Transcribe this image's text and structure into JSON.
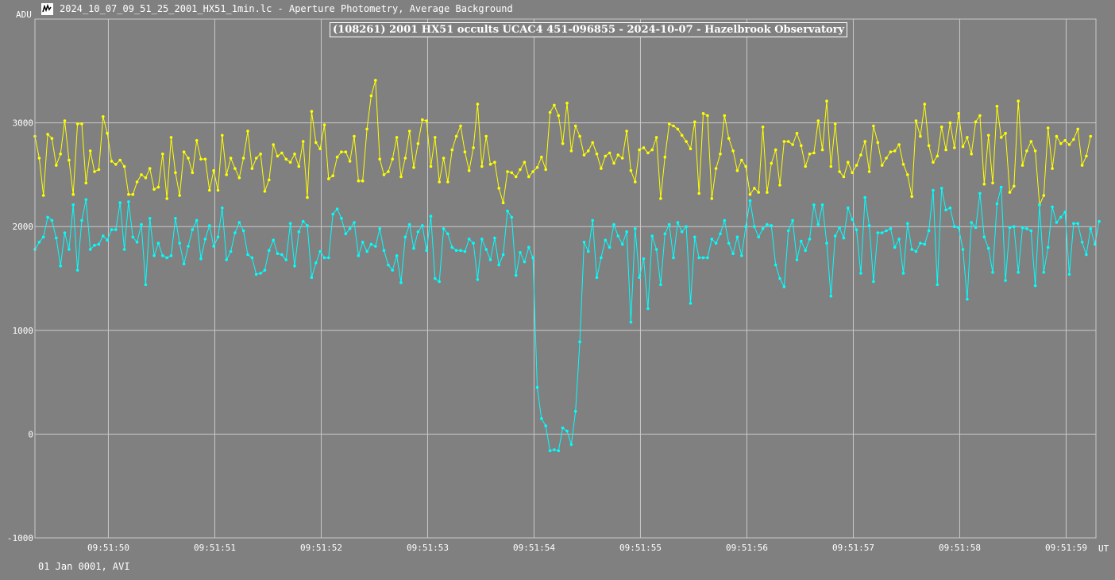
{
  "window": {
    "title": "2024_10_07_09_51_25_2001_HX51_1min.lc - Aperture Photometry, Average Background",
    "icon": "lightcurve-app-icon"
  },
  "footer": {
    "info": "01 Jan 0001, AVI"
  },
  "chart_data": {
    "type": "line",
    "title": "(108261) 2001 HX51 occults UCAC4 451-096855 - 2024-10-07 - Hazelbrook Observatory",
    "ylabel": "ADU",
    "xlabel": "UT",
    "xlim": [
      49.31,
      59.28
    ],
    "ylim": [
      -1000,
      4000
    ],
    "grid": true,
    "yticks": [
      -1000,
      0,
      1000,
      2000,
      3000
    ],
    "ytick_labels": [
      "-1000",
      "0",
      "1000",
      "2000",
      "3000"
    ],
    "xticks": [
      50,
      51,
      52,
      53,
      54,
      55,
      56,
      57,
      58,
      59
    ],
    "xtick_labels": [
      "09:51:50",
      "09:51:51",
      "09:51:52",
      "09:51:53",
      "09:51:54",
      "09:51:55",
      "09:51:56",
      "09:51:57",
      "09:51:58",
      "09:51:59"
    ],
    "x": {
      "start": 49.31,
      "step": 0.04
    },
    "series": [
      {
        "color": "#ffff00",
        "values": [
          2870,
          2660,
          2300,
          2890,
          2850,
          2590,
          2700,
          3020,
          2640,
          2310,
          2990,
          2990,
          2420,
          2730,
          2530,
          2550,
          3060,
          2900,
          2630,
          2600,
          2640,
          2580,
          2310,
          2310,
          2430,
          2500,
          2470,
          2560,
          2360,
          2380,
          2700,
          2270,
          2860,
          2520,
          2300,
          2720,
          2660,
          2520,
          2830,
          2650,
          2650,
          2350,
          2540,
          2350,
          2880,
          2500,
          2660,
          2560,
          2470,
          2660,
          2920,
          2560,
          2660,
          2700,
          2340,
          2450,
          2790,
          2680,
          2710,
          2650,
          2620,
          2700,
          2580,
          2820,
          2280,
          3110,
          2810,
          2750,
          2980,
          2460,
          2490,
          2670,
          2720,
          2720,
          2630,
          2870,
          2440,
          2440,
          2940,
          3260,
          3410,
          2650,
          2500,
          2530,
          2650,
          2860,
          2480,
          2660,
          2920,
          2570,
          2800,
          3030,
          3020,
          2580,
          2860,
          2430,
          2660,
          2430,
          2740,
          2870,
          2970,
          2720,
          2540,
          2760,
          3180,
          2580,
          2870,
          2600,
          2620,
          2370,
          2230,
          2530,
          2520,
          2480,
          2550,
          2620,
          2480,
          2530,
          2570,
          2670,
          2550,
          3100,
          3170,
          3070,
          2800,
          3190,
          2730,
          2970,
          2870,
          2690,
          2730,
          2810,
          2700,
          2560,
          2680,
          2710,
          2610,
          2690,
          2660,
          2920,
          2540,
          2430,
          2740,
          2760,
          2710,
          2740,
          2860,
          2270,
          2670,
          2990,
          2970,
          2940,
          2880,
          2820,
          2750,
          3010,
          2320,
          3090,
          3070,
          2270,
          2560,
          2700,
          3070,
          2850,
          2730,
          2540,
          2640,
          2580,
          2310,
          2370,
          2330,
          2960,
          2330,
          2610,
          2740,
          2400,
          2820,
          2820,
          2790,
          2900,
          2780,
          2580,
          2700,
          2710,
          3020,
          2740,
          3210,
          2580,
          2990,
          2530,
          2480,
          2620,
          2520,
          2590,
          2690,
          2820,
          2530,
          2970,
          2810,
          2590,
          2660,
          2720,
          2730,
          2790,
          2600,
          2500,
          2290,
          3020,
          2870,
          3180,
          2780,
          2620,
          2680,
          2960,
          2740,
          3000,
          2760,
          3090,
          2770,
          2860,
          2700,
          3010,
          3070,
          2410,
          2880,
          2420,
          3160,
          2860,
          2900,
          2330,
          2390,
          3210,
          2590,
          2730,
          2820,
          2730,
          2210,
          2300,
          2950,
          2560,
          2870,
          2800,
          2830,
          2790,
          2840,
          2940,
          2590,
          2680,
          2870
        ]
      },
      {
        "color": "#00ffff",
        "values": [
          1780,
          1850,
          1900,
          2090,
          2060,
          1890,
          1620,
          1940,
          1780,
          2210,
          1580,
          2060,
          2260,
          1780,
          1820,
          1830,
          1910,
          1870,
          1970,
          1970,
          2230,
          1780,
          2240,
          1900,
          1850,
          2020,
          1440,
          2080,
          1720,
          1840,
          1720,
          1700,
          1720,
          2080,
          1840,
          1640,
          1810,
          1970,
          2060,
          1690,
          1880,
          2010,
          1810,
          1900,
          2180,
          1680,
          1760,
          1940,
          2040,
          1960,
          1730,
          1700,
          1540,
          1550,
          1580,
          1770,
          1870,
          1740,
          1730,
          1680,
          2030,
          1620,
          1950,
          2050,
          2010,
          1510,
          1650,
          1760,
          1700,
          1700,
          2120,
          2170,
          2080,
          1930,
          1980,
          2040,
          1720,
          1850,
          1760,
          1830,
          1810,
          1980,
          1770,
          1630,
          1580,
          1720,
          1460,
          1900,
          2020,
          1790,
          1950,
          2010,
          1770,
          2100,
          1500,
          1470,
          1980,
          1930,
          1800,
          1770,
          1770,
          1760,
          1880,
          1840,
          1490,
          1880,
          1780,
          1680,
          1890,
          1630,
          1730,
          2150,
          2090,
          1530,
          1750,
          1660,
          1800,
          1700,
          450,
          150,
          80,
          -160,
          -150,
          -160,
          60,
          30,
          -100,
          220,
          890,
          1850,
          1760,
          2060,
          1510,
          1700,
          1870,
          1800,
          2020,
          1910,
          1830,
          1950,
          1080,
          1980,
          1510,
          1690,
          1210,
          1910,
          1780,
          1440,
          1930,
          2020,
          1700,
          2040,
          1950,
          2000,
          1260,
          1900,
          1700,
          1700,
          1700,
          1880,
          1840,
          1930,
          2060,
          1840,
          1740,
          1900,
          1720,
          2000,
          2250,
          2000,
          1900,
          1980,
          2020,
          2010,
          1630,
          1500,
          1420,
          1960,
          2060,
          1680,
          1860,
          1770,
          1880,
          2210,
          2020,
          2210,
          1840,
          1330,
          1910,
          1990,
          1890,
          2180,
          2070,
          1970,
          1550,
          2280,
          2010,
          1470,
          1940,
          1940,
          1960,
          1980,
          1800,
          1880,
          1550,
          2030,
          1780,
          1760,
          1840,
          1830,
          1960,
          2350,
          1440,
          2370,
          2160,
          2180,
          2000,
          1990,
          1780,
          1300,
          2040,
          1990,
          2320,
          1900,
          1790,
          1560,
          2220,
          2380,
          1480,
          1990,
          2000,
          1560,
          1990,
          1980,
          1960,
          1430,
          2210,
          1560,
          1800,
          2190,
          2040,
          2090,
          2140,
          1540,
          2030,
          2030,
          1850,
          1730,
          1980,
          1830,
          2050
        ]
      }
    ]
  }
}
